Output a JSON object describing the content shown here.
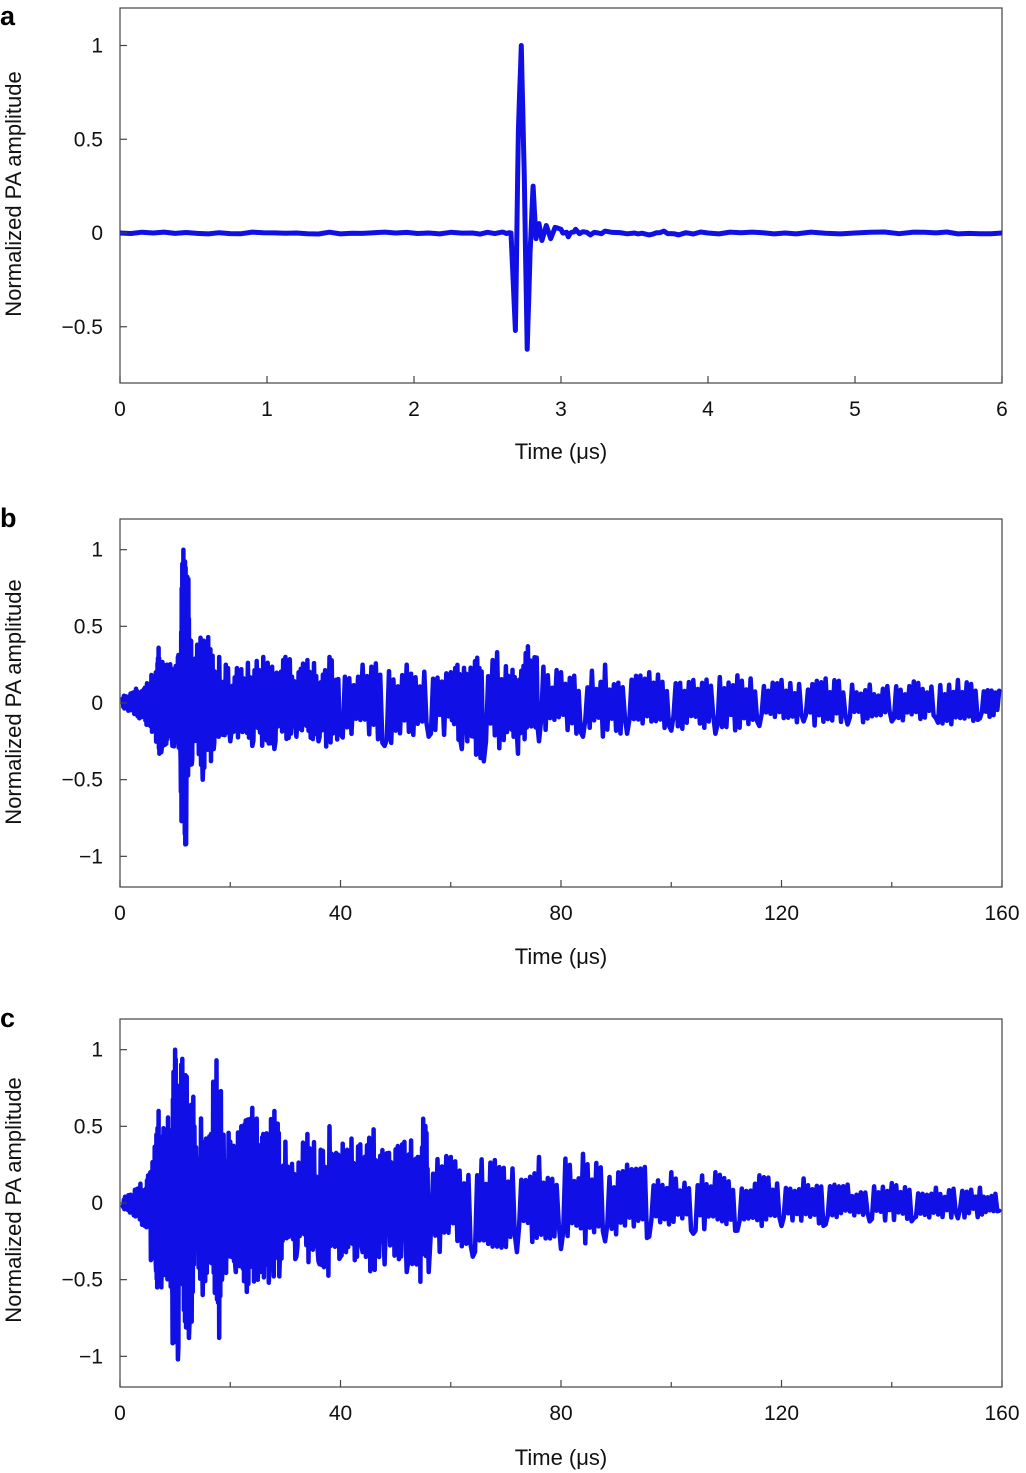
{
  "chart_data": [
    {
      "panel": "a",
      "type": "line",
      "xlabel": "Time (μs)",
      "ylabel": "Normalized PA amplitude",
      "xlim": [
        0,
        6
      ],
      "ylim": [
        -0.8,
        1.2
      ],
      "xticks": [
        0,
        1,
        2,
        3,
        4,
        5,
        6
      ],
      "xtick_labels": [
        "0",
        "1",
        "2",
        "3",
        "4",
        "5",
        "6"
      ],
      "yticks": [
        -0.5,
        0,
        0.5,
        1
      ],
      "ytick_labels": [
        "−0.5",
        "0",
        "0.5",
        "1"
      ],
      "minor_xticks": [],
      "grid": false,
      "series": [
        {
          "color": "#1010e6",
          "x": [
            0,
            0.3,
            0.6,
            0.9,
            1.2,
            1.5,
            1.8,
            2.1,
            2.4,
            2.6,
            2.66,
            2.69,
            2.71,
            2.73,
            2.75,
            2.77,
            2.79,
            2.81,
            2.83,
            2.85,
            2.87,
            2.9,
            2.93,
            2.96,
            3.0,
            3.05,
            3.1,
            3.2,
            3.3,
            3.5,
            3.6,
            3.7,
            3.8,
            4.0,
            4.3,
            4.6,
            5.0,
            5.4,
            5.7,
            6.0
          ],
          "y": [
            0,
            0.005,
            -0.005,
            0.005,
            0,
            -0.005,
            0.005,
            0,
            0,
            0.005,
            0.0,
            -0.52,
            0.55,
            1.0,
            0.3,
            -0.62,
            -0.1,
            0.25,
            -0.03,
            0.05,
            -0.04,
            0.04,
            -0.03,
            0.03,
            0.02,
            -0.02,
            0.02,
            -0.01,
            0.01,
            0,
            -0.01,
            0.01,
            -0.01,
            0,
            0.005,
            -0.005,
            0,
            0.005,
            -0.005,
            0
          ]
        }
      ]
    },
    {
      "panel": "b",
      "type": "line",
      "xlabel": "Time (μs)",
      "ylabel": "Normalized PA amplitude",
      "xlim": [
        0,
        160
      ],
      "ylim": [
        -1.2,
        1.2
      ],
      "xticks": [
        0,
        40,
        80,
        120,
        160
      ],
      "xtick_labels": [
        "0",
        "40",
        "80",
        "120",
        "160"
      ],
      "yticks": [
        -1,
        -0.5,
        0,
        0.5,
        1
      ],
      "ytick_labels": [
        "−1",
        "−0.5",
        "0",
        "0.5",
        "1"
      ],
      "minor_xticks": [
        20,
        60,
        100,
        140
      ],
      "grid": false,
      "series": [
        {
          "color": "#1010e6",
          "x": [
            0.5,
            1.5,
            2.5,
            3.5,
            4.5,
            5.5,
            6.5,
            7.0,
            7.5,
            8.5,
            9.5,
            10.5,
            11.0,
            11.5,
            12.0,
            12.5,
            13.0,
            14.0,
            15.0,
            16.0,
            17.0,
            18.0,
            20.0,
            22.0,
            24.0,
            26.0,
            28.0,
            30.0,
            32.0,
            34.0,
            36.0,
            38.0,
            40.0,
            44.0,
            48.0,
            52.0,
            56.0,
            60.0,
            62.0,
            64.0,
            66.0,
            70.0,
            72.0,
            74.0,
            76.0,
            80.0,
            84.0,
            88.0,
            92.0,
            96.0,
            100.0,
            104.0,
            108.0,
            112.0,
            116.0,
            120.0,
            124.0,
            128.0,
            132.0,
            136.0,
            140.0,
            144.0,
            148.0,
            152.0,
            156.0,
            159.5
          ],
          "y": [
            0.03,
            -0.05,
            0.07,
            -0.1,
            0.1,
            -0.15,
            0.2,
            0.36,
            -0.32,
            0.25,
            -0.28,
            0.3,
            -0.35,
            1.0,
            -0.92,
            0.55,
            -0.4,
            0.38,
            -0.5,
            0.43,
            -0.3,
            0.3,
            -0.25,
            0.22,
            -0.28,
            0.3,
            -0.3,
            0.3,
            -0.22,
            0.28,
            -0.25,
            0.3,
            -0.2,
            0.25,
            -0.28,
            0.25,
            -0.22,
            0.2,
            -0.3,
            0.22,
            -0.38,
            0.24,
            -0.2,
            0.37,
            -0.25,
            0.2,
            -0.22,
            0.25,
            -0.2,
            0.2,
            -0.18,
            0.15,
            -0.2,
            0.18,
            -0.15,
            0.15,
            -0.12,
            0.16,
            -0.14,
            0.12,
            -0.12,
            0.14,
            -0.1,
            0.15,
            -0.1,
            0.08
          ]
        }
      ]
    },
    {
      "panel": "c",
      "type": "line",
      "xlabel": "Time (μs)",
      "ylabel": "Normalized PA amplitude",
      "xlim": [
        0,
        160
      ],
      "ylim": [
        -1.2,
        1.2
      ],
      "xticks": [
        0,
        40,
        80,
        120,
        160
      ],
      "xtick_labels": [
        "0",
        "40",
        "80",
        "120",
        "160"
      ],
      "yticks": [
        -1,
        -0.5,
        0,
        0.5,
        1
      ],
      "ytick_labels": [
        "−1",
        "−0.5",
        "0",
        "0.5",
        "1"
      ],
      "minor_xticks": [
        20,
        60,
        100,
        140
      ],
      "grid": false,
      "series": [
        {
          "color": "#1010e6",
          "x": [
            0.5,
            1.5,
            2.5,
            3.5,
            4.5,
            5.5,
            6.5,
            7.0,
            7.5,
            8.5,
            9.5,
            10.0,
            10.5,
            11.5,
            12.5,
            13.5,
            15.0,
            16.5,
            17.5,
            18.5,
            20.0,
            21.0,
            22.0,
            23.0,
            24.0,
            25.0,
            26.0,
            27.0,
            28.0,
            29.0,
            30.0,
            32.0,
            34.0,
            36.0,
            38.0,
            40.0,
            42.0,
            44.0,
            46.0,
            48.0,
            50.0,
            52.0,
            54.0,
            55.0,
            56.0,
            60.0,
            64.0,
            68.0,
            72.0,
            76.0,
            80.0,
            84.0,
            88.0,
            92.0,
            96.0,
            100.0,
            104.0,
            108.0,
            112.0,
            116.0,
            120.0,
            124.0,
            128.0,
            132.0,
            136.0,
            140.0,
            144.0,
            148.0,
            152.0,
            156.0,
            159.5
          ],
          "y": [
            -0.02,
            0.05,
            -0.08,
            0.1,
            -0.15,
            0.2,
            -0.4,
            0.6,
            -0.55,
            0.45,
            -0.6,
            1.0,
            -1.02,
            0.8,
            -0.88,
            0.5,
            -0.6,
            0.45,
            0.93,
            -0.5,
            0.4,
            -0.45,
            0.5,
            -0.58,
            0.62,
            -0.5,
            0.45,
            -0.52,
            0.6,
            -0.35,
            0.4,
            -0.35,
            0.45,
            -0.38,
            0.5,
            -0.35,
            0.42,
            -0.32,
            0.48,
            -0.4,
            0.35,
            -0.45,
            0.3,
            0.55,
            -0.45,
            0.3,
            -0.35,
            0.28,
            -0.32,
            0.3,
            -0.3,
            0.32,
            -0.25,
            0.25,
            -0.22,
            0.2,
            -0.2,
            0.2,
            -0.18,
            0.18,
            -0.15,
            0.16,
            -0.14,
            0.12,
            -0.12,
            0.13,
            -0.1,
            0.1,
            -0.1,
            0.1,
            -0.05
          ]
        }
      ]
    }
  ],
  "panels": [
    {
      "letter": "a",
      "xlabel": "Time (μs)",
      "ylabel": "Normalized PA amplitude"
    },
    {
      "letter": "b",
      "xlabel": "Time (μs)",
      "ylabel": "Normalized PA amplitude"
    },
    {
      "letter": "c",
      "xlabel": "Time (μs)",
      "ylabel": "Normalized PA amplitude"
    }
  ]
}
